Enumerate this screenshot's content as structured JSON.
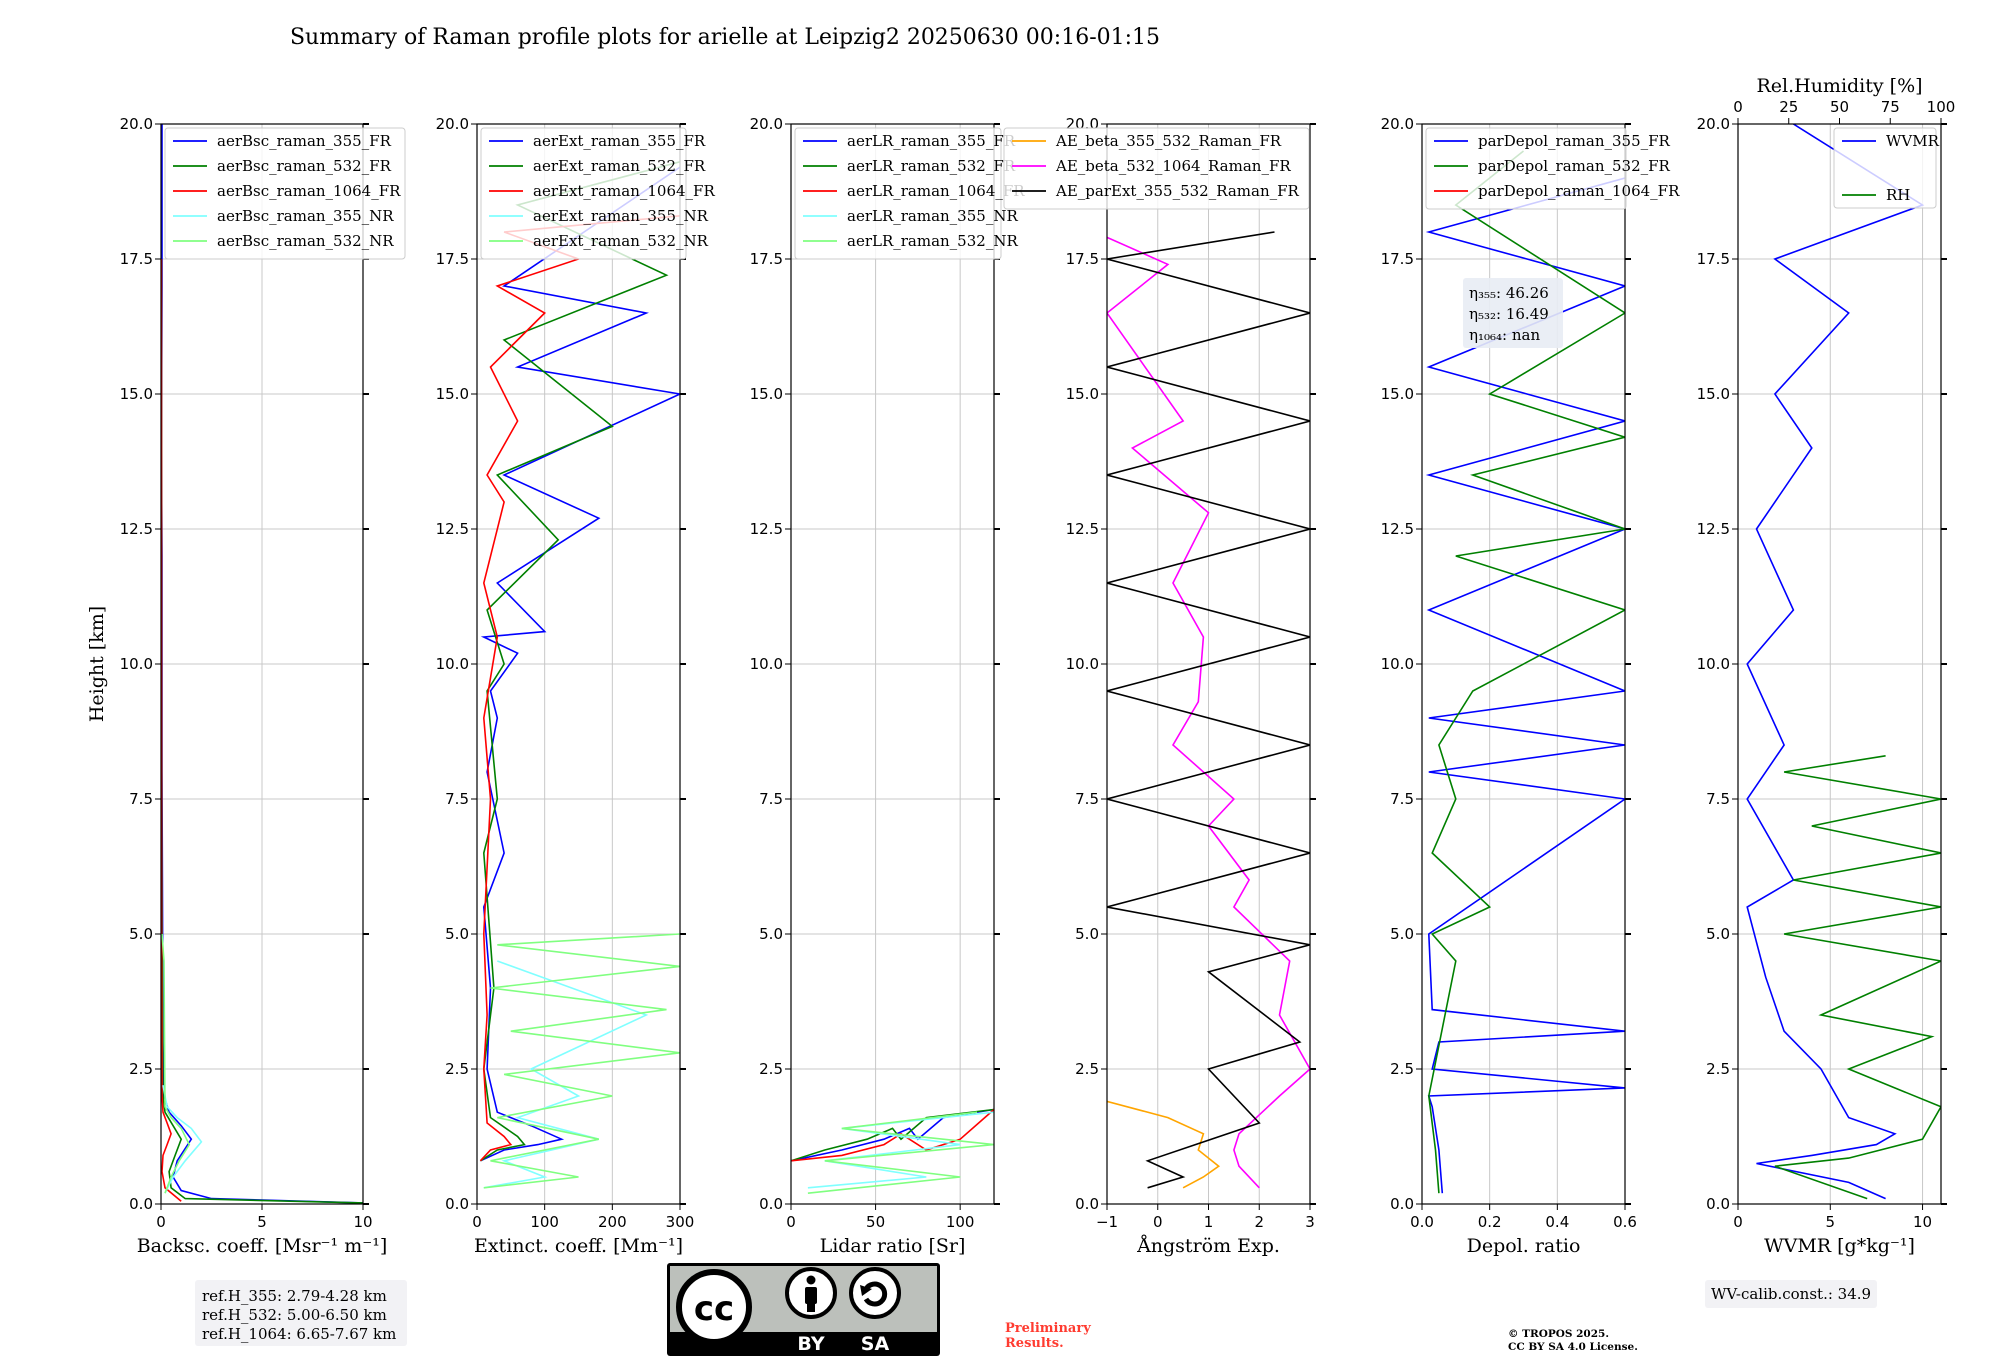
{
  "figure": {
    "title": "Summary of Raman profile plots for arielle at Leipzig2 20250630 00:16-01:15"
  },
  "license_badge": {
    "by": "BY",
    "sa": "SA",
    "cc": "cc"
  },
  "footer": {
    "ref_heights": [
      "ref.H_355: 2.79-4.28 km",
      "ref.H_532: 5.00-6.50 km",
      "ref.H_1064: 6.65-7.67 km"
    ],
    "preliminary": [
      "Preliminary",
      "Results."
    ],
    "copyright": [
      "© TROPOS 2025.",
      "CC BY SA 4.0 License."
    ],
    "wv_calib": "WV-calib.const.: 34.9"
  },
  "colors": {
    "blue": "#0000ff",
    "green": "#008000",
    "red": "#ff0000",
    "cyan": "#80ffff",
    "lightgreen": "#80ff80",
    "orange": "#ffa500",
    "magenta": "#ff00ff",
    "black": "#000000",
    "grid": "#c8c8c8"
  },
  "chart_data": [
    {
      "type": "line",
      "xlabel": "Backsc. coeff. [Msr⁻¹ m⁻¹]",
      "ylabel": "Height [km]",
      "xlim": [
        0,
        10
      ],
      "ylim": [
        0,
        20
      ],
      "xticks": [
        0,
        5,
        10
      ],
      "xtick_labels": [
        "0",
        "5",
        "10"
      ],
      "yticks": [
        0,
        2.5,
        5,
        7.5,
        10,
        12.5,
        15,
        17.5,
        20
      ],
      "ytick_labels": [
        "0.0",
        "2.5",
        "5.0",
        "7.5",
        "10.0",
        "12.5",
        "15.0",
        "17.5",
        "20.0"
      ],
      "grid": true,
      "legend": "top-left",
      "series": [
        {
          "name": "aerBsc_raman_355_FR",
          "color": "blue",
          "x": [
            10.0,
            2.5,
            1.0,
            0.6,
            0.8,
            1.5,
            1.0,
            0.4,
            0.15,
            0.1,
            0.08,
            0.05,
            0.05,
            0.02,
            0.05,
            0.05
          ],
          "y": [
            0.02,
            0.1,
            0.25,
            0.5,
            0.8,
            1.2,
            1.45,
            1.7,
            2.0,
            3.0,
            5.0,
            8.0,
            12.0,
            14.0,
            17.0,
            20.0
          ]
        },
        {
          "name": "aerBsc_raman_532_FR",
          "color": "green",
          "x": [
            10.0,
            1.2,
            0.5,
            0.4,
            0.7,
            1.0,
            0.6,
            0.2,
            0.1,
            0.05,
            0.03,
            0.02
          ],
          "y": [
            0.02,
            0.1,
            0.3,
            0.6,
            0.9,
            1.2,
            1.45,
            1.7,
            2.0,
            5.0,
            10.0,
            17.5
          ]
        },
        {
          "name": "aerBsc_raman_1064_FR",
          "color": "red",
          "x": [
            1.0,
            0.2,
            0.05,
            0.1,
            0.3,
            0.5,
            0.3,
            0.1,
            0.05,
            0.03,
            0.02
          ],
          "y": [
            0.05,
            0.3,
            0.6,
            0.9,
            1.1,
            1.3,
            1.5,
            1.7,
            2.0,
            5.0,
            17.5
          ]
        },
        {
          "name": "aerBsc_raman_355_NR",
          "color": "cyan",
          "x": [
            0.2,
            0.6,
            1.2,
            2.0,
            1.5,
            0.8,
            0.3,
            0.1
          ],
          "y": [
            0.2,
            0.5,
            0.8,
            1.15,
            1.4,
            1.6,
            1.8,
            2.2
          ]
        },
        {
          "name": "aerBsc_raman_532_NR",
          "color": "lightgreen",
          "x": [
            0.2,
            0.5,
            0.9,
            1.4,
            1.0,
            0.5,
            0.2,
            0.15,
            0.05
          ],
          "y": [
            0.2,
            0.5,
            0.8,
            1.1,
            1.4,
            1.6,
            1.8,
            4.5,
            5.0
          ]
        }
      ]
    },
    {
      "type": "line",
      "xlabel": "Extinct. coeff. [Mm⁻¹]",
      "xlim": [
        0,
        300
      ],
      "ylim": [
        0,
        20
      ],
      "xticks": [
        0,
        100,
        200,
        300
      ],
      "xtick_labels": [
        "0",
        "100",
        "200",
        "300"
      ],
      "yticks": [
        0,
        2.5,
        5,
        7.5,
        10,
        12.5,
        15,
        17.5,
        20
      ],
      "ytick_labels": [
        "0.0",
        "2.5",
        "5.0",
        "7.5",
        "10.0",
        "12.5",
        "15.0",
        "17.5",
        "20.0"
      ],
      "grid": true,
      "legend": "top-left",
      "series": [
        {
          "name": "aerExt_raman_355_FR",
          "color": "blue",
          "x": [
            5,
            40,
            90,
            125,
            80,
            30,
            15,
            20,
            10,
            40,
            15,
            30,
            20,
            60,
            10,
            100,
            30,
            180,
            40,
            300,
            60,
            250,
            40,
            300
          ],
          "y": [
            0.8,
            1.0,
            1.1,
            1.2,
            1.45,
            1.7,
            2.5,
            4.0,
            5.5,
            6.5,
            8.0,
            9.0,
            9.5,
            10.2,
            10.5,
            10.6,
            11.5,
            12.7,
            13.5,
            15.0,
            15.5,
            16.5,
            17.0,
            19.2
          ]
        },
        {
          "name": "aerExt_raman_532_FR",
          "color": "green",
          "x": [
            5,
            30,
            70,
            60,
            20,
            10,
            25,
            10,
            30,
            15,
            40,
            15,
            120,
            30,
            200,
            40,
            280,
            60,
            300
          ],
          "y": [
            0.8,
            1.0,
            1.1,
            1.25,
            1.6,
            2.5,
            4.0,
            6.5,
            7.5,
            9.5,
            10.0,
            11.0,
            12.3,
            13.5,
            14.4,
            16.0,
            17.2,
            18.5,
            19.3
          ]
        },
        {
          "name": "aerExt_raman_1064_FR",
          "color": "red",
          "x": [
            5,
            20,
            50,
            40,
            15,
            10,
            15,
            10,
            20,
            10,
            30,
            10,
            40,
            15,
            60,
            20,
            100,
            30,
            150,
            40,
            300
          ],
          "y": [
            0.8,
            1.0,
            1.1,
            1.25,
            1.5,
            2.5,
            3.5,
            5.0,
            7.5,
            9.0,
            10.5,
            11.5,
            13.0,
            13.5,
            14.5,
            15.5,
            16.5,
            17.0,
            17.5,
            18.0,
            18.3
          ]
        },
        {
          "name": "aerExt_raman_355_NR",
          "color": "cyan",
          "x": [
            10,
            100,
            40,
            180,
            60,
            150,
            80,
            250,
            30
          ],
          "y": [
            0.3,
            0.5,
            0.8,
            1.2,
            1.6,
            2.0,
            2.5,
            3.5,
            4.5
          ]
        },
        {
          "name": "aerExt_raman_532_NR",
          "color": "lightgreen",
          "x": [
            10,
            150,
            20,
            180,
            30,
            200,
            40,
            300,
            50,
            280,
            20,
            300,
            30,
            300
          ],
          "y": [
            0.3,
            0.5,
            0.8,
            1.2,
            1.6,
            2.0,
            2.4,
            2.8,
            3.2,
            3.6,
            4.0,
            4.4,
            4.8,
            5.0
          ]
        }
      ]
    },
    {
      "type": "line",
      "xlabel": "Lidar ratio [Sr]",
      "xlim": [
        0,
        120
      ],
      "ylim": [
        0,
        20
      ],
      "xticks": [
        0,
        50,
        100
      ],
      "xtick_labels": [
        "0",
        "50",
        "100"
      ],
      "yticks": [
        0,
        2.5,
        5,
        7.5,
        10,
        12.5,
        15,
        17.5,
        20
      ],
      "ytick_labels": [
        "0.0",
        "2.5",
        "5.0",
        "7.5",
        "10.0",
        "12.5",
        "15.0",
        "17.5",
        "20.0"
      ],
      "grid": true,
      "legend": "top-left",
      "series": [
        {
          "name": "aerLR_raman_355_FR",
          "color": "blue",
          "x": [
            0,
            30,
            55,
            70,
            75,
            90,
            120
          ],
          "y": [
            0.8,
            1.0,
            1.2,
            1.4,
            1.2,
            1.6,
            1.75
          ]
        },
        {
          "name": "aerLR_raman_532_FR",
          "color": "green",
          "x": [
            0,
            20,
            45,
            60,
            65,
            80,
            120
          ],
          "y": [
            0.8,
            1.0,
            1.2,
            1.4,
            1.2,
            1.6,
            1.75
          ]
        },
        {
          "name": "aerLR_raman_1064_FR",
          "color": "red",
          "x": [
            0,
            30,
            55,
            65,
            80,
            100,
            120
          ],
          "y": [
            0.8,
            0.9,
            1.1,
            1.3,
            1.0,
            1.2,
            1.75
          ]
        },
        {
          "name": "aerLR_raman_355_NR",
          "color": "cyan",
          "x": [
            10,
            80,
            20,
            100,
            30,
            120
          ],
          "y": [
            0.3,
            0.5,
            0.8,
            1.1,
            1.4,
            1.7
          ]
        },
        {
          "name": "aerLR_raman_532_NR",
          "color": "lightgreen",
          "x": [
            10,
            100,
            20,
            120,
            30,
            110
          ],
          "y": [
            0.2,
            0.5,
            0.8,
            1.1,
            1.4,
            1.7
          ]
        }
      ]
    },
    {
      "type": "line",
      "xlabel": "Ångström Exp.",
      "xlim": [
        -1,
        3
      ],
      "ylim": [
        0,
        20
      ],
      "xticks": [
        -1,
        0,
        1,
        2,
        3
      ],
      "xtick_labels": [
        "−1",
        "0",
        "1",
        "2",
        "3"
      ],
      "yticks": [
        0,
        2.5,
        5,
        7.5,
        10,
        12.5,
        15,
        17.5,
        20
      ],
      "ytick_labels": [
        "0.0",
        "2.5",
        "5.0",
        "7.5",
        "10.0",
        "12.5",
        "15.0",
        "17.5",
        "20.0"
      ],
      "grid": true,
      "legend": "top-right",
      "series": [
        {
          "name": "AE_beta_355_532_Raman_FR",
          "color": "orange",
          "x": [
            0.5,
            0.9,
            1.2,
            0.8,
            0.9,
            0.2,
            -1.0
          ],
          "y": [
            0.3,
            0.5,
            0.7,
            1.0,
            1.3,
            1.6,
            1.9
          ]
        },
        {
          "name": "AE_beta_532_1064_Raman_FR",
          "color": "magenta",
          "x": [
            2.0,
            1.6,
            1.5,
            1.6,
            2.4,
            3.0,
            2.4,
            2.6,
            1.5,
            1.8,
            1.0,
            1.5,
            0.3,
            0.8,
            0.9,
            0.3,
            1.0,
            -0.5,
            0.5,
            -1.0,
            0.2,
            -1.0
          ],
          "y": [
            0.3,
            0.7,
            1.0,
            1.3,
            2.0,
            2.5,
            3.5,
            4.5,
            5.5,
            6.0,
            7.0,
            7.5,
            8.5,
            9.3,
            10.5,
            11.5,
            12.8,
            14.0,
            14.5,
            16.5,
            17.4,
            17.9
          ]
        },
        {
          "name": "AE_parExt_355_532_Raman_FR",
          "color": "black",
          "x": [
            -0.2,
            0.5,
            -0.2,
            2.0,
            1.0,
            2.8,
            1.0,
            3.0,
            -1.0,
            3.0,
            -1.0,
            3.0,
            -1.0,
            3.0,
            -1.0,
            3.0,
            -1.0,
            3.0,
            -1.0,
            3.0,
            -1.0,
            2.3
          ],
          "y": [
            0.3,
            0.5,
            0.8,
            1.5,
            2.5,
            3.0,
            4.3,
            4.8,
            5.5,
            6.5,
            7.5,
            8.5,
            9.5,
            10.5,
            11.5,
            12.5,
            13.5,
            14.5,
            15.5,
            16.5,
            17.5,
            18.0
          ]
        }
      ]
    },
    {
      "type": "line",
      "xlabel": "Depol. ratio",
      "xlim": [
        0,
        0.6
      ],
      "ylim": [
        0,
        20
      ],
      "xticks": [
        0,
        0.2,
        0.4,
        0.6
      ],
      "xtick_labels": [
        "0.0",
        "0.2",
        "0.4",
        "0.6"
      ],
      "yticks": [
        0,
        2.5,
        5,
        7.5,
        10,
        12.5,
        15,
        17.5,
        20
      ],
      "ytick_labels": [
        "0.0",
        "2.5",
        "5.0",
        "7.5",
        "10.0",
        "12.5",
        "15.0",
        "17.5",
        "20.0"
      ],
      "grid": true,
      "legend": "top-left",
      "annotation": {
        "lines": [
          "η₃₅₅: 46.26",
          "η₅₃₂: 16.49",
          "η₁₀₆₄: nan"
        ]
      },
      "series": [
        {
          "name": "parDepol_raman_355_FR",
          "color": "blue",
          "x": [
            0.06,
            0.05,
            0.03,
            0.02,
            0.6,
            0.03,
            0.05,
            0.6,
            0.03,
            0.02,
            0.6,
            0.02,
            0.6,
            0.02,
            0.6,
            0.02,
            0.6,
            0.02,
            0.6,
            0.02,
            0.6,
            0.02,
            0.6
          ],
          "y": [
            0.2,
            1.0,
            1.8,
            2.0,
            2.15,
            2.5,
            3.0,
            3.2,
            3.6,
            5.0,
            7.5,
            8.0,
            8.5,
            9.0,
            9.5,
            11.0,
            12.5,
            13.5,
            14.5,
            15.5,
            17.0,
            18.0,
            19.0
          ]
        },
        {
          "name": "parDepol_raman_532_FR",
          "color": "green",
          "x": [
            0.05,
            0.04,
            0.02,
            0.1,
            0.03,
            0.2,
            0.03,
            0.1,
            0.05,
            0.15,
            0.6,
            0.1,
            0.6,
            0.15,
            0.6,
            0.2,
            0.6,
            0.1,
            0.3
          ],
          "y": [
            0.2,
            1.0,
            2.0,
            4.5,
            5.0,
            5.5,
            6.5,
            7.5,
            8.5,
            9.5,
            11.0,
            12.0,
            12.5,
            13.5,
            14.2,
            15.0,
            16.5,
            18.5,
            19.5
          ]
        },
        {
          "name": "parDepol_raman_1064_FR",
          "color": "red",
          "x": [],
          "y": []
        }
      ]
    },
    {
      "type": "line",
      "xlabel": "WVMR [g*kg⁻¹]",
      "xlim": [
        0,
        11
      ],
      "ylim": [
        0,
        20
      ],
      "xticks": [
        0,
        5,
        10
      ],
      "xtick_labels": [
        "0",
        "5",
        "10"
      ],
      "yticks": [
        0,
        2.5,
        5,
        7.5,
        10,
        12.5,
        15,
        17.5,
        20
      ],
      "ytick_labels": [
        "0.0",
        "2.5",
        "5.0",
        "7.5",
        "10.0",
        "12.5",
        "15.0",
        "17.5",
        "20.0"
      ],
      "top_axis": {
        "label": "Rel.Humidity [%]",
        "xlim": [
          0,
          100
        ],
        "xticks": [
          0,
          25,
          50,
          75,
          100
        ],
        "xtick_labels": [
          "0",
          "25",
          "50",
          "75",
          "100"
        ]
      },
      "grid": true,
      "legend": "top-right",
      "series": [
        {
          "name": "WVMR",
          "color": "blue",
          "x": [
            8.0,
            6.0,
            1.0,
            4.0,
            7.5,
            8.5,
            6.0,
            4.5,
            2.5,
            1.5,
            0.5,
            3.0,
            0.5,
            2.5,
            0.5,
            3.0,
            1.0,
            4.0,
            2.0,
            6.0,
            2.0,
            10.0,
            3.0
          ],
          "y": [
            0.1,
            0.4,
            0.75,
            0.9,
            1.1,
            1.3,
            1.6,
            2.5,
            3.2,
            4.2,
            5.5,
            6.0,
            7.5,
            8.5,
            10.0,
            11.0,
            12.5,
            14.0,
            15.0,
            16.5,
            17.5,
            18.5,
            20.0
          ]
        },
        {
          "name": "RH",
          "color": "green",
          "x": [
            7.0,
            2.0,
            6.0,
            10.0,
            11.0,
            6.0,
            10.5,
            4.5,
            11.0,
            2.5,
            11.0,
            3.0,
            11.0,
            4.0,
            11.0,
            2.5,
            8.0
          ],
          "y": [
            0.1,
            0.7,
            0.85,
            1.2,
            1.8,
            2.5,
            3.1,
            3.5,
            4.5,
            5.0,
            5.5,
            6.0,
            6.5,
            7.0,
            7.5,
            8.0,
            8.3
          ]
        }
      ]
    }
  ]
}
